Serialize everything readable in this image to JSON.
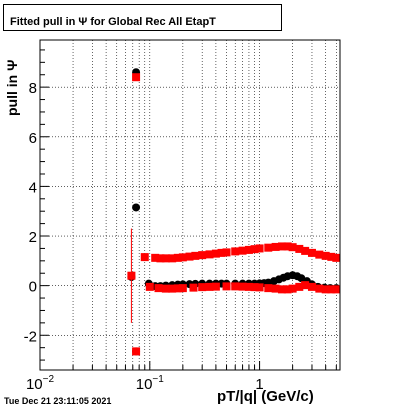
{
  "title": "Fitted pull in  Ψ  for Global Rec All EtapT",
  "timestamp": "Tue Dec 21 23:11:05 2021",
  "chart_data": {
    "type": "scatter",
    "xlabel": "pT/|q| (GeV/c)",
    "ylabel": "pull in  Ψ",
    "x_scale": "log",
    "xlim": [
      0.01,
      5.4
    ],
    "ylim": [
      -3.4,
      9.9
    ],
    "x_tick_labels": [
      "10^-2",
      "10^-1",
      "1"
    ],
    "y_tick_labels": [
      "-2",
      "0",
      "2",
      "4",
      "6",
      "8"
    ],
    "y_ticks": [
      -2,
      0,
      2,
      4,
      6,
      8
    ],
    "grid": true,
    "colors": {
      "mean": "#000000",
      "sigma": "#ff0000"
    },
    "series": [
      {
        "role": "mean",
        "color": "#000000",
        "points": [
          [
            0.075,
            8.6,
            0.15
          ],
          [
            0.075,
            3.15,
            0.12
          ],
          [
            0.068,
            0.35,
            0.05
          ],
          [
            0.075,
            -2.65,
            0.1
          ],
          [
            0.098,
            0.08,
            0.05
          ],
          [
            0.112,
            -0.02,
            0.04
          ],
          [
            0.125,
            -0.02,
            0.04
          ],
          [
            0.14,
            0.0,
            0.04
          ],
          [
            0.16,
            0.02,
            0.04
          ],
          [
            0.18,
            0.04,
            0.04
          ],
          [
            0.2,
            0.05,
            0.04
          ],
          [
            0.23,
            0.06,
            0.04
          ],
          [
            0.26,
            0.07,
            0.04
          ],
          [
            0.3,
            0.08,
            0.04
          ],
          [
            0.35,
            0.08,
            0.04
          ],
          [
            0.4,
            0.08,
            0.04
          ],
          [
            0.45,
            0.08,
            0.04
          ],
          [
            0.5,
            0.08,
            0.04
          ],
          [
            0.6,
            0.08,
            0.04
          ],
          [
            0.7,
            0.08,
            0.05
          ],
          [
            0.8,
            0.08,
            0.05
          ],
          [
            0.9,
            0.08,
            0.05
          ],
          [
            1.0,
            0.09,
            0.05
          ],
          [
            1.1,
            0.1,
            0.05
          ],
          [
            1.2,
            0.12,
            0.05
          ],
          [
            1.35,
            0.18,
            0.06
          ],
          [
            1.5,
            0.25,
            0.06
          ],
          [
            1.65,
            0.32,
            0.07
          ],
          [
            1.8,
            0.38,
            0.07
          ],
          [
            2.0,
            0.42,
            0.07
          ],
          [
            2.2,
            0.38,
            0.07
          ],
          [
            2.4,
            0.3,
            0.07
          ],
          [
            2.7,
            0.18,
            0.07
          ],
          [
            3.0,
            0.05,
            0.06
          ],
          [
            3.4,
            -0.05,
            0.06
          ],
          [
            3.9,
            -0.08,
            0.06
          ],
          [
            4.4,
            -0.1,
            0.06
          ],
          [
            5.0,
            -0.1,
            0.06
          ]
        ]
      },
      {
        "role": "sigma",
        "color": "#ff0000",
        "points": [
          [
            0.075,
            8.4,
            0.15
          ],
          [
            0.068,
            0.4,
            1.9
          ],
          [
            0.075,
            -2.65,
            0.1
          ],
          [
            0.09,
            1.15,
            0.05
          ],
          [
            0.112,
            1.12,
            0.05
          ],
          [
            0.125,
            1.1,
            0.05
          ],
          [
            0.14,
            1.1,
            0.05
          ],
          [
            0.16,
            1.1,
            0.05
          ],
          [
            0.18,
            1.12,
            0.05
          ],
          [
            0.2,
            1.14,
            0.05
          ],
          [
            0.23,
            1.17,
            0.05
          ],
          [
            0.26,
            1.2,
            0.05
          ],
          [
            0.3,
            1.23,
            0.05
          ],
          [
            0.35,
            1.26,
            0.05
          ],
          [
            0.4,
            1.29,
            0.05
          ],
          [
            0.45,
            1.32,
            0.05
          ],
          [
            0.5,
            1.34,
            0.05
          ],
          [
            0.6,
            1.38,
            0.05
          ],
          [
            0.7,
            1.41,
            0.05
          ],
          [
            0.8,
            1.44,
            0.05
          ],
          [
            0.9,
            1.47,
            0.05
          ],
          [
            1.0,
            1.5,
            0.05
          ],
          [
            1.2,
            1.53,
            0.05
          ],
          [
            1.4,
            1.56,
            0.05
          ],
          [
            1.6,
            1.58,
            0.06
          ],
          [
            1.8,
            1.58,
            0.06
          ],
          [
            2.0,
            1.55,
            0.06
          ],
          [
            2.3,
            1.48,
            0.06
          ],
          [
            2.6,
            1.4,
            0.06
          ],
          [
            3.0,
            1.32,
            0.06
          ],
          [
            3.5,
            1.25,
            0.06
          ],
          [
            4.0,
            1.2,
            0.06
          ],
          [
            4.5,
            1.16,
            0.06
          ],
          [
            5.0,
            1.12,
            0.06
          ],
          [
            0.1,
            -0.05,
            0.04
          ],
          [
            0.12,
            -0.1,
            0.04
          ],
          [
            0.14,
            -0.12,
            0.04
          ],
          [
            0.16,
            -0.12,
            0.04
          ],
          [
            0.18,
            -0.11,
            0.04
          ],
          [
            0.2,
            -0.1,
            0.04
          ],
          [
            0.25,
            -0.08,
            0.04
          ],
          [
            0.3,
            -0.06,
            0.04
          ],
          [
            0.35,
            -0.05,
            0.04
          ],
          [
            0.4,
            -0.04,
            0.04
          ],
          [
            0.5,
            -0.03,
            0.04
          ],
          [
            0.6,
            -0.03,
            0.04
          ],
          [
            0.7,
            -0.04,
            0.05
          ],
          [
            0.8,
            -0.05,
            0.05
          ],
          [
            0.9,
            -0.06,
            0.05
          ],
          [
            1.0,
            -0.07,
            0.05
          ],
          [
            1.2,
            -0.1,
            0.05
          ],
          [
            1.4,
            -0.12,
            0.05
          ],
          [
            1.6,
            -0.15,
            0.05
          ],
          [
            1.8,
            -0.15,
            0.05
          ],
          [
            2.0,
            -0.12,
            0.05
          ],
          [
            2.3,
            -0.05,
            0.06
          ],
          [
            2.6,
            0.02,
            0.06
          ],
          [
            3.0,
            -0.05,
            0.06
          ],
          [
            3.5,
            -0.12,
            0.06
          ],
          [
            4.0,
            -0.15,
            0.06
          ],
          [
            4.5,
            -0.15,
            0.06
          ],
          [
            5.0,
            -0.15,
            0.06
          ]
        ]
      }
    ]
  }
}
